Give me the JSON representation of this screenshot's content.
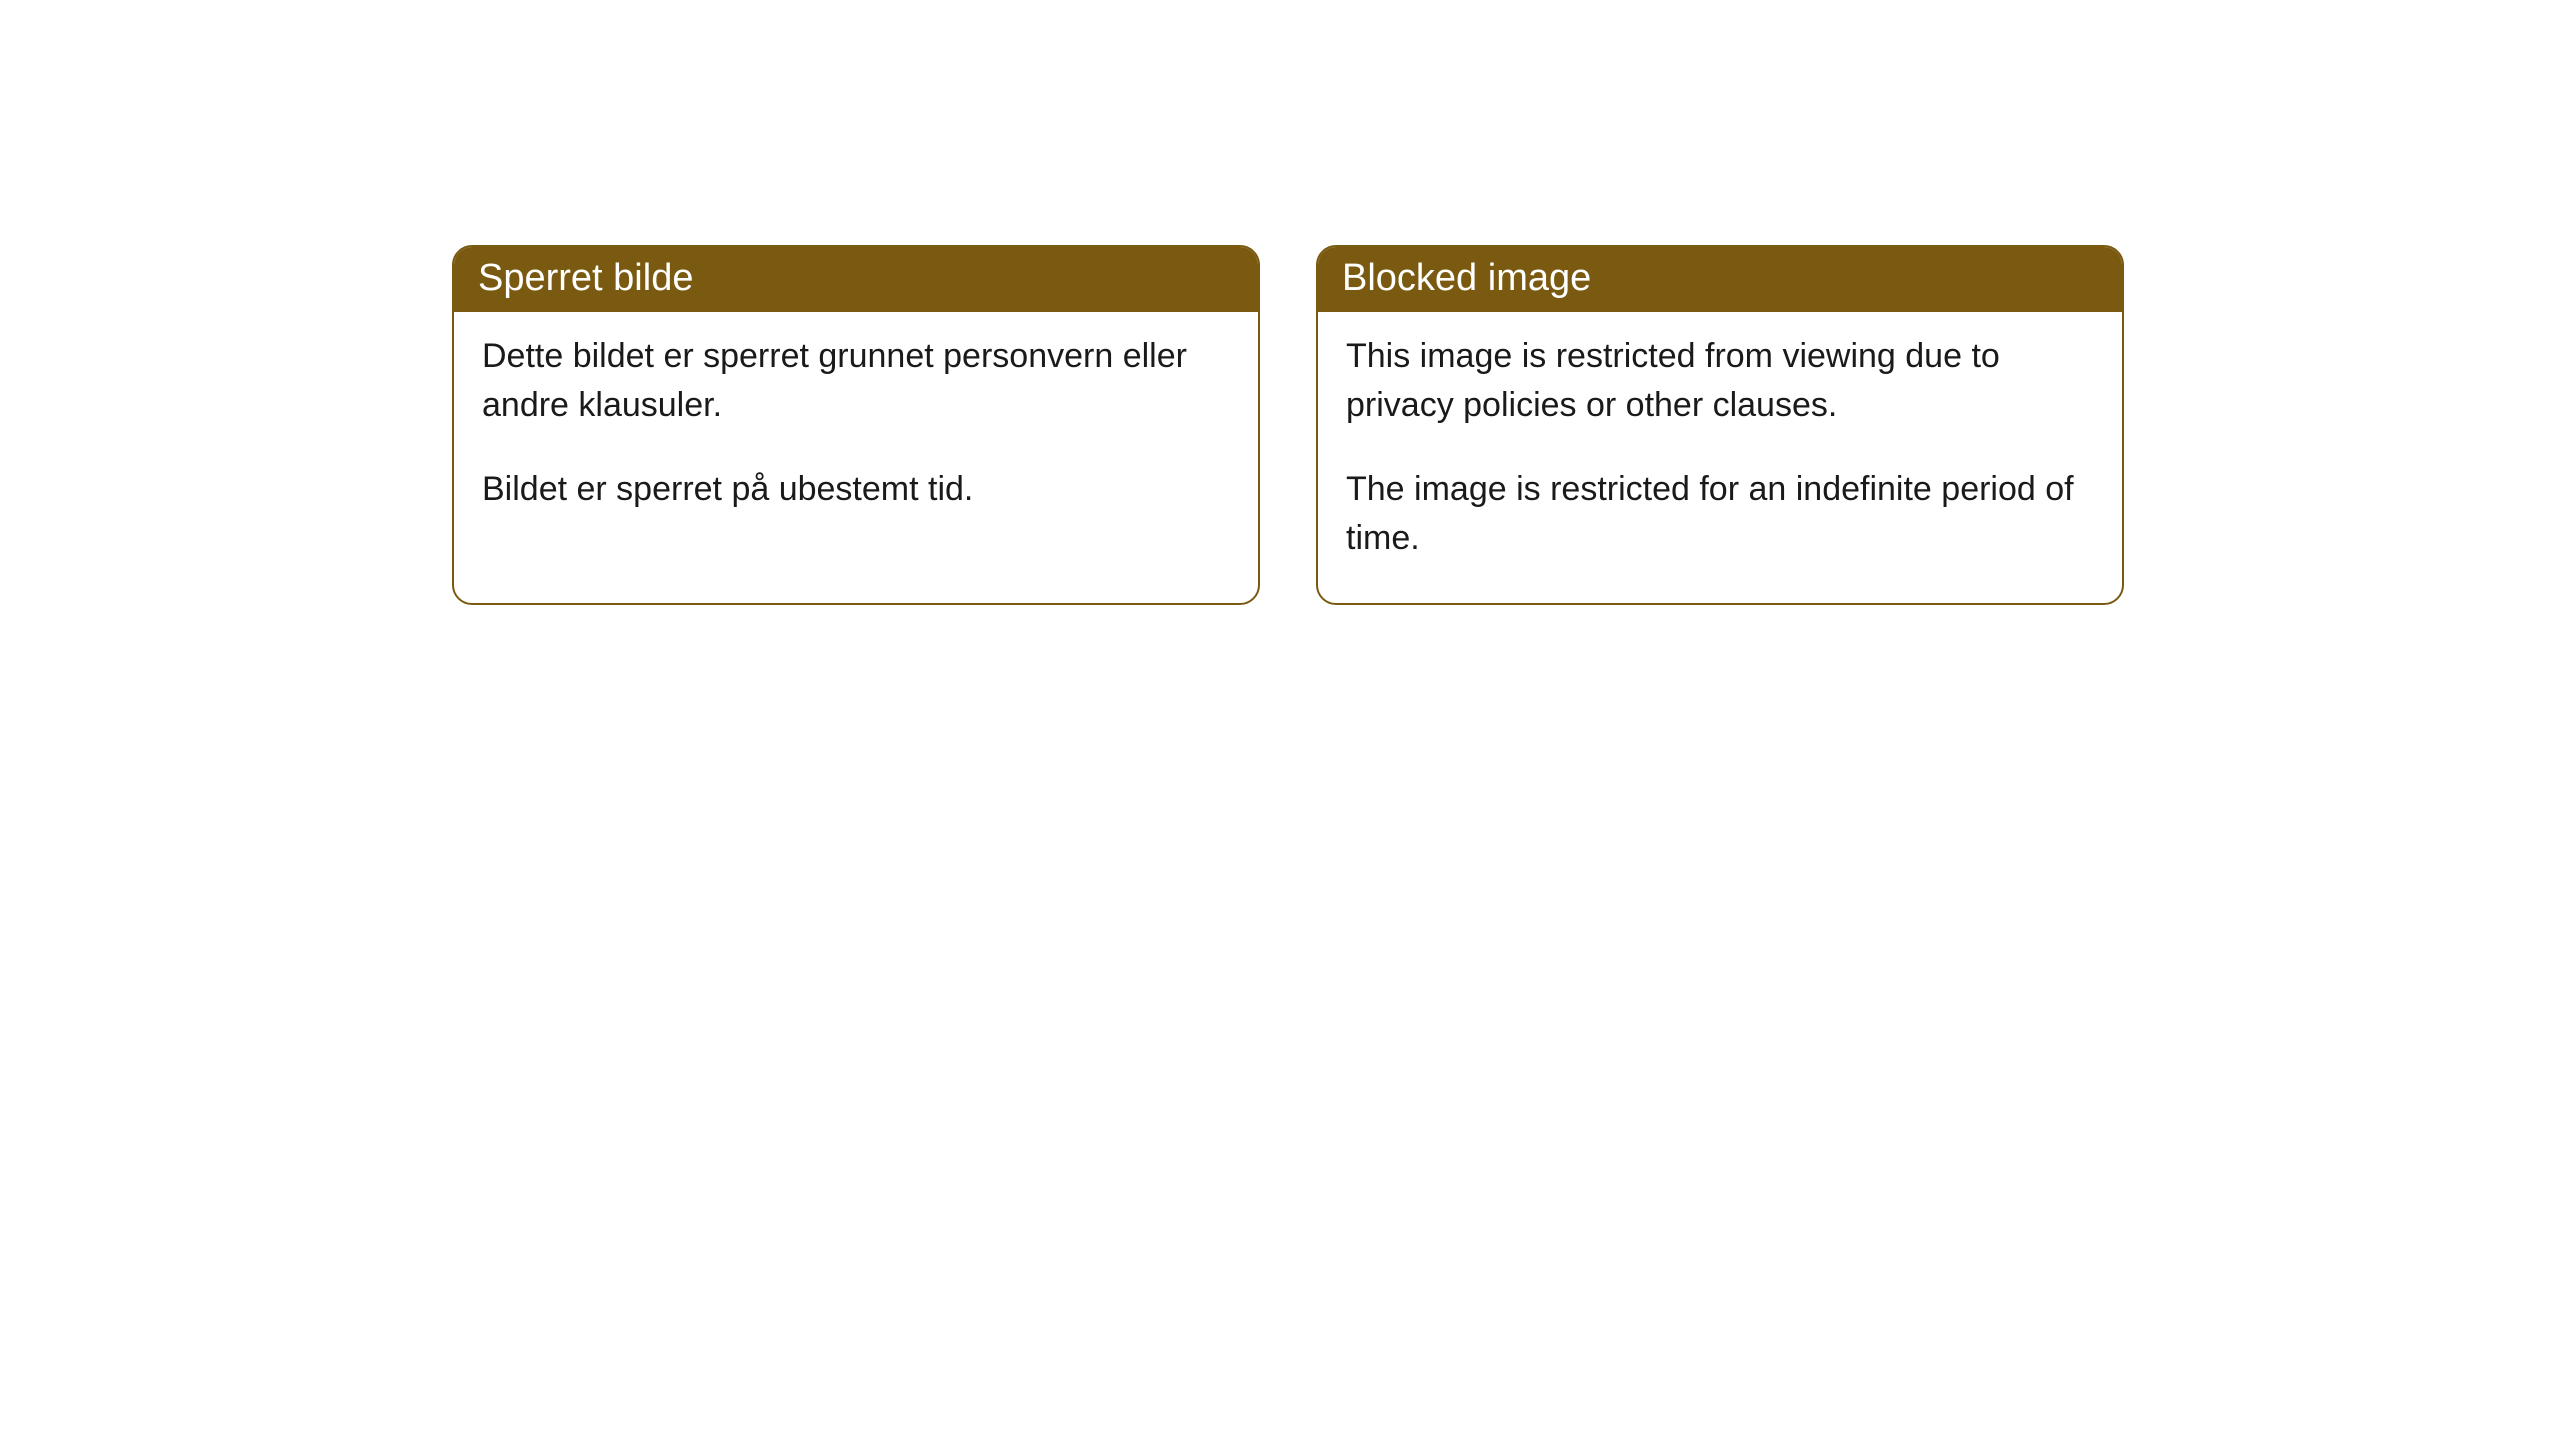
{
  "cards": [
    {
      "title": "Sperret bilde",
      "paragraph1": "Dette bildet er sperret grunnet personvern eller andre klausuler.",
      "paragraph2": "Bildet er sperret på ubestemt tid."
    },
    {
      "title": "Blocked image",
      "paragraph1": "This image is restricted from viewing due to privacy policies or other clauses.",
      "paragraph2": "The image is restricted for an indefinite period of time."
    }
  ],
  "style": {
    "header_bg": "#7a5a10",
    "header_text_color": "#ffffff",
    "border_color": "#7a5a10",
    "body_bg": "#ffffff",
    "body_text_color": "#1a1a1a",
    "border_radius": 20,
    "header_fontsize": 38,
    "body_fontsize": 34
  }
}
